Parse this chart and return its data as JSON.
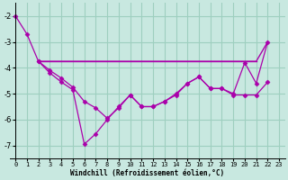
{
  "background_color": "#c8e8e0",
  "grid_color": "#9ecfbf",
  "line_color": "#aa00aa",
  "xlabel": "Windchill (Refroidissement éolien,°C)",
  "xlim": [
    -0.5,
    23.5
  ],
  "ylim": [
    -7.5,
    -1.5
  ],
  "yticks": [
    -7,
    -6,
    -5,
    -4,
    -3,
    -2
  ],
  "xticks": [
    0,
    1,
    2,
    3,
    4,
    5,
    6,
    7,
    8,
    9,
    10,
    11,
    12,
    13,
    14,
    15,
    16,
    17,
    18,
    19,
    20,
    21,
    22,
    23
  ],
  "line1_x": [
    0,
    1,
    2,
    3,
    4,
    5,
    6,
    7,
    8,
    9,
    10,
    11,
    12,
    13,
    14,
    15,
    16,
    17,
    18,
    19,
    20,
    21,
    22
  ],
  "line1_y": [
    -2.0,
    -2.7,
    -3.75,
    -4.2,
    -4.55,
    -4.85,
    -6.95,
    -6.55,
    -6.0,
    -5.5,
    -5.05,
    -5.5,
    -5.5,
    -5.3,
    -5.0,
    -4.6,
    -4.35,
    -4.8,
    -4.8,
    -5.0,
    -3.8,
    -4.6,
    -3.0
  ],
  "line2_x": [
    2,
    21
  ],
  "line2_y": [
    -3.75,
    -3.75
  ],
  "line3_x": [
    2,
    21,
    22
  ],
  "line3_y": [
    -3.75,
    -3.75,
    -3.0
  ],
  "line4_x": [
    2,
    3,
    4,
    5,
    6,
    7,
    8,
    9,
    10,
    11,
    12,
    13,
    14,
    15,
    16,
    17,
    18,
    19,
    20,
    21,
    22
  ],
  "line4_y": [
    -3.75,
    -4.1,
    -4.4,
    -4.75,
    -5.3,
    -5.55,
    -5.95,
    -5.55,
    -5.05,
    -5.5,
    -5.5,
    -5.3,
    -5.05,
    -4.6,
    -4.35,
    -4.8,
    -4.8,
    -5.05,
    -5.05,
    -5.05,
    -4.55
  ]
}
